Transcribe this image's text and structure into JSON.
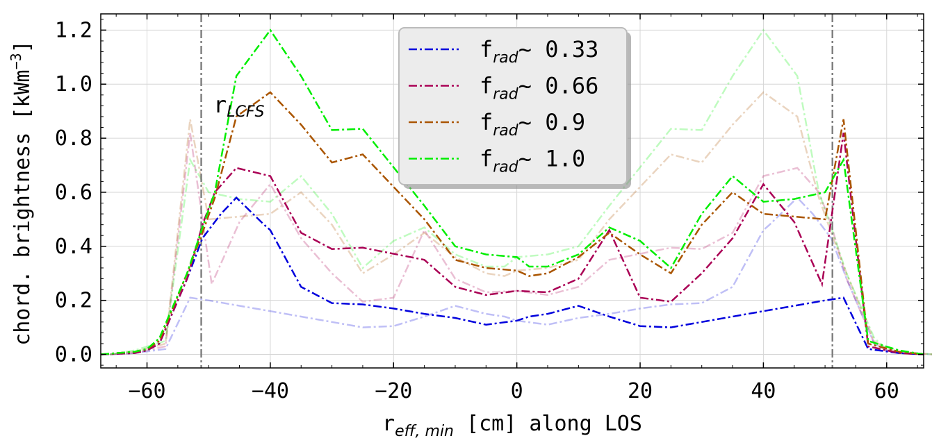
{
  "chart_data": {
    "type": "line",
    "xlabel": "r",
    "xlabel_sub": "eff, min",
    "xlabel_rest": " [cm] along LOS",
    "ylabel": "chord. brightness [kWm",
    "ylabel_sup": "−3",
    "ylabel_end": "]",
    "xlim": [
      -67.5,
      66
    ],
    "ylim": [
      -0.05,
      1.26
    ],
    "xticks": [
      -60,
      -40,
      -20,
      0,
      20,
      40,
      60
    ],
    "xtick_labels": [
      "−60",
      "−40",
      "−20",
      "0",
      "20",
      "40",
      "60"
    ],
    "yticks": [
      0.0,
      0.2,
      0.4,
      0.6,
      0.8,
      1.0,
      1.2
    ],
    "ytick_labels": [
      "0.0",
      "0.2",
      "0.4",
      "0.6",
      "0.8",
      "1.0",
      "1.2"
    ],
    "grid": true,
    "legend_position": "top-center",
    "vlines": [
      -51.2,
      51.2
    ],
    "annotation": {
      "text": "r",
      "sub": "LCFS",
      "x": -49,
      "y": 0.9
    },
    "series": [
      {
        "name": "f",
        "name_sub": "rad",
        "name_rest": "~ 0.33",
        "color": "#0000dd",
        "x": [
          -67.5,
          -62,
          -60,
          -58,
          -53.5,
          -51,
          -48,
          -45.5,
          -41,
          -40,
          -35,
          -30,
          -25,
          -20,
          -15,
          -10,
          -5,
          0,
          2,
          5,
          10,
          15,
          20,
          25,
          30,
          35,
          40,
          45,
          50,
          53,
          57,
          62,
          66
        ],
        "y": [
          0.0,
          0.005,
          0.015,
          0.04,
          0.28,
          0.43,
          0.52,
          0.58,
          0.48,
          0.46,
          0.25,
          0.19,
          0.185,
          0.17,
          0.15,
          0.135,
          0.11,
          0.125,
          0.14,
          0.15,
          0.18,
          0.14,
          0.105,
          0.1,
          0.12,
          0.14,
          0.16,
          0.18,
          0.2,
          0.21,
          0.02,
          0.005,
          0.0
        ]
      },
      {
        "name": "f",
        "name_sub": "rad",
        "name_rest": "~ 0.66",
        "color": "#aa0055",
        "x": [
          -67.5,
          -62,
          -60,
          -58,
          -53.5,
          -51,
          -49,
          -45.5,
          -40,
          -35,
          -30,
          -25,
          -15,
          -10,
          -5,
          0,
          5,
          10,
          15,
          20,
          25,
          30,
          35,
          40,
          45,
          49.5,
          53,
          57,
          62,
          66
        ],
        "y": [
          0.0,
          0.005,
          0.015,
          0.04,
          0.28,
          0.48,
          0.6,
          0.69,
          0.66,
          0.45,
          0.39,
          0.395,
          0.35,
          0.25,
          0.22,
          0.235,
          0.23,
          0.28,
          0.46,
          0.21,
          0.195,
          0.3,
          0.43,
          0.63,
          0.49,
          0.26,
          0.82,
          0.03,
          0.005,
          0.0
        ]
      },
      {
        "name": "f",
        "name_sub": "rad",
        "name_rest": "~ 0.9",
        "color": "#aa5500",
        "x": [
          -67.5,
          -62,
          -60,
          -58,
          -53.5,
          -51,
          -49,
          -45.5,
          -40,
          -35,
          -30,
          -25,
          -15,
          -10,
          -5,
          0,
          2,
          5,
          10,
          15,
          20,
          25,
          30,
          35,
          40,
          45,
          50,
          53,
          57,
          62,
          66
        ],
        "y": [
          0.0,
          0.01,
          0.02,
          0.05,
          0.3,
          0.45,
          0.58,
          0.88,
          0.97,
          0.85,
          0.71,
          0.74,
          0.5,
          0.35,
          0.32,
          0.31,
          0.29,
          0.3,
          0.36,
          0.45,
          0.37,
          0.3,
          0.48,
          0.6,
          0.52,
          0.51,
          0.5,
          0.87,
          0.04,
          0.01,
          0.0
        ]
      },
      {
        "name": "f",
        "name_sub": "rad",
        "name_rest": "~ 1.0",
        "color": "#00ee00",
        "x": [
          -67.5,
          -62,
          -60,
          -58,
          -53.5,
          -51,
          -49,
          -45.5,
          -40,
          -35,
          -30,
          -25,
          -15,
          -10,
          -5,
          0,
          2,
          5,
          10,
          15,
          20,
          25,
          30,
          35,
          40,
          45,
          50,
          53,
          57,
          62,
          66
        ],
        "y": [
          0.0,
          0.01,
          0.02,
          0.06,
          0.3,
          0.47,
          0.6,
          1.03,
          1.2,
          1.03,
          0.83,
          0.835,
          0.55,
          0.4,
          0.37,
          0.36,
          0.325,
          0.325,
          0.37,
          0.47,
          0.42,
          0.32,
          0.52,
          0.66,
          0.565,
          0.575,
          0.6,
          0.72,
          0.05,
          0.015,
          0.0
        ]
      }
    ]
  }
}
